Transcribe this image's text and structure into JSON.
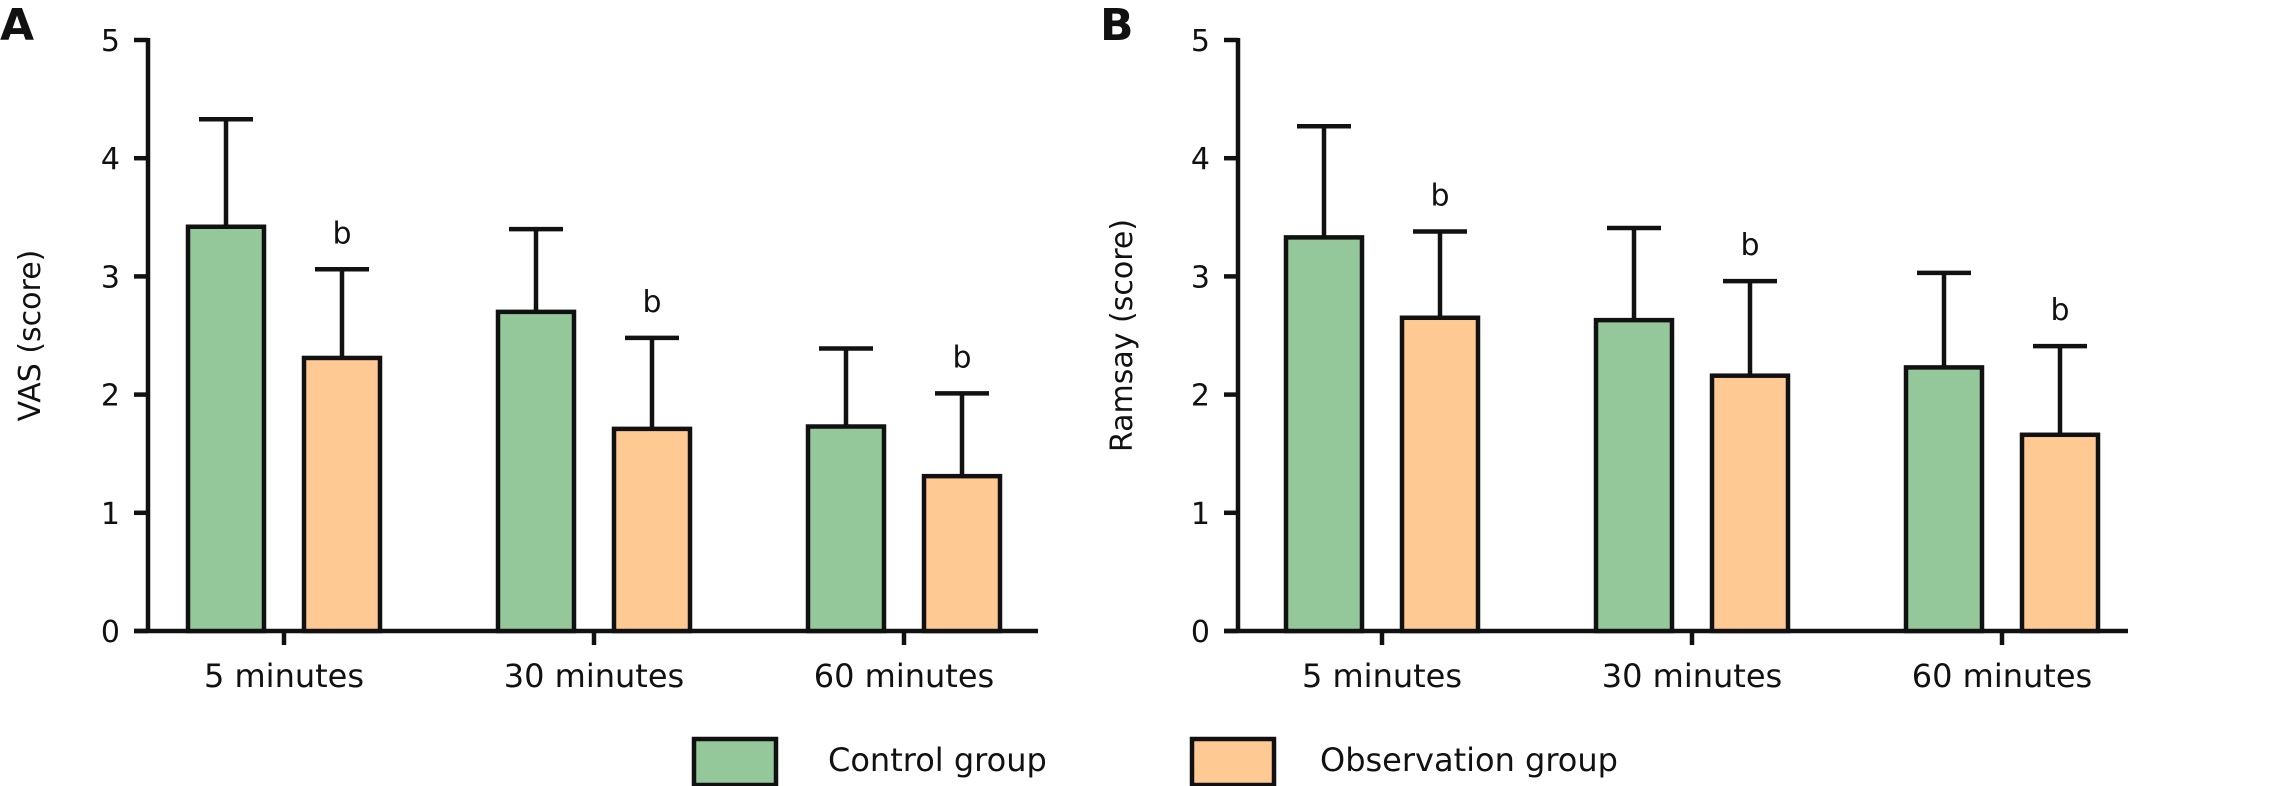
{
  "chart_data": [
    {
      "type": "bar",
      "panel_label": "A",
      "ylabel": "VAS (score)",
      "xlabel": "",
      "ylim": [
        0,
        5
      ],
      "yticks": [
        0,
        1,
        2,
        3,
        4,
        5
      ],
      "categories": [
        "5 minutes",
        "30 minutes",
        "60 minutes"
      ],
      "series": [
        {
          "name": "Control group",
          "values": [
            3.42,
            2.7,
            1.73
          ],
          "errors": [
            0.91,
            0.7,
            0.66
          ],
          "annotations": [
            "",
            "",
            ""
          ]
        },
        {
          "name": "Observation group",
          "values": [
            2.31,
            1.71,
            1.31
          ],
          "errors": [
            0.75,
            0.77,
            0.7
          ],
          "annotations": [
            "b",
            "b",
            "b"
          ]
        }
      ]
    },
    {
      "type": "bar",
      "panel_label": "B",
      "ylabel": "Ramsay (score)",
      "xlabel": "",
      "ylim": [
        0,
        5
      ],
      "yticks": [
        0,
        1,
        2,
        3,
        4,
        5
      ],
      "categories": [
        "5 minutes",
        "30 minutes",
        "60 minutes"
      ],
      "series": [
        {
          "name": "Control group",
          "values": [
            3.33,
            2.63,
            2.23
          ],
          "errors": [
            0.94,
            0.78,
            0.8
          ],
          "annotations": [
            "",
            "",
            ""
          ]
        },
        {
          "name": "Observation group",
          "values": [
            2.65,
            2.16,
            1.66
          ],
          "errors": [
            0.73,
            0.8,
            0.75
          ],
          "annotations": [
            "b",
            "b",
            "b"
          ]
        }
      ]
    }
  ],
  "legend": {
    "placement": "bottom",
    "items": [
      {
        "label": "Control group",
        "color": "#94c799"
      },
      {
        "label": "Observation group",
        "color": "#ffc994"
      }
    ]
  },
  "colors": {
    "control": "#94c799",
    "observation": "#ffc994",
    "stroke": "#111111"
  }
}
